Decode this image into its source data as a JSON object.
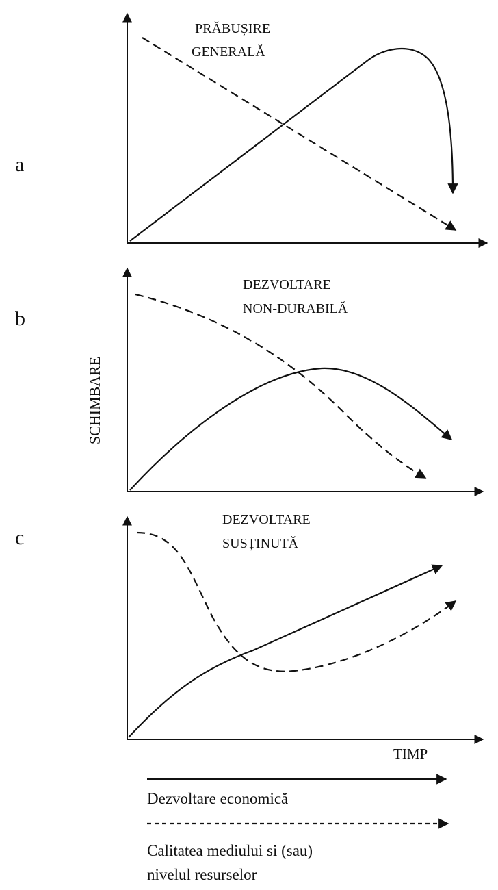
{
  "panels": [
    {
      "letter": "a",
      "title": [
        "PRĂBUȘIRE",
        "GENERALĂ"
      ]
    },
    {
      "letter": "b",
      "title": [
        "DEZVOLTARE",
        "NON-DURABILĂ"
      ]
    },
    {
      "letter": "c",
      "title": [
        "DEZVOLTARE",
        "SUSȚINUTĂ"
      ]
    }
  ],
  "y_axis_label": "SCHIMBARE",
  "x_axis_label": "TIMP",
  "legend": [
    {
      "lines": [
        "Dezvoltare economică"
      ]
    },
    {
      "lines": [
        "Calitatea mediului si (sau)",
        "nivelul resurselor"
      ]
    }
  ]
}
